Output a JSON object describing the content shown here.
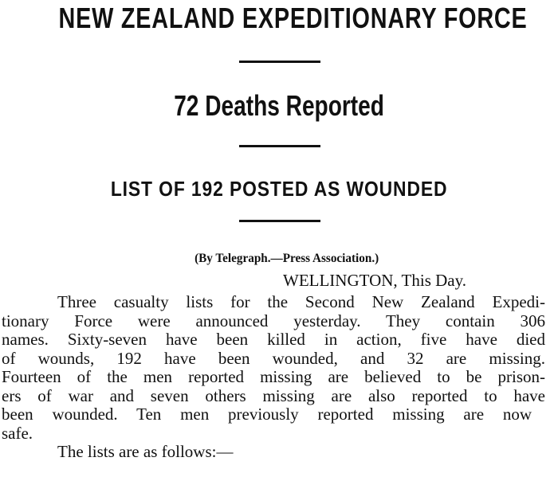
{
  "article": {
    "headline": "NEW ZEALAND EXPEDITIONARY FORCE",
    "subheadline": "72 Deaths Reported",
    "subheadline2": "LIST OF 192 POSTED AS WOUNDED",
    "byline": "(By Telegraph.—Press Association.)",
    "dateline": "WELLINGTON, This Day.",
    "body_lines": [
      "Three casualty lists for the Second New Zealand Expedi-",
      "tionary Force were announced yesterday. They contain 306",
      "names. Sixty-seven have been killed in action, five have died",
      "of wounds, 192 have been wounded, and 32 are missing.",
      "Fourteen of the men reported missing are believed to be prison-",
      "ers of war and seven others missing are also reported to have",
      "been wounded. Ten men previously reported missing are now",
      "safe.",
      "The lists are as follows:—"
    ]
  }
}
